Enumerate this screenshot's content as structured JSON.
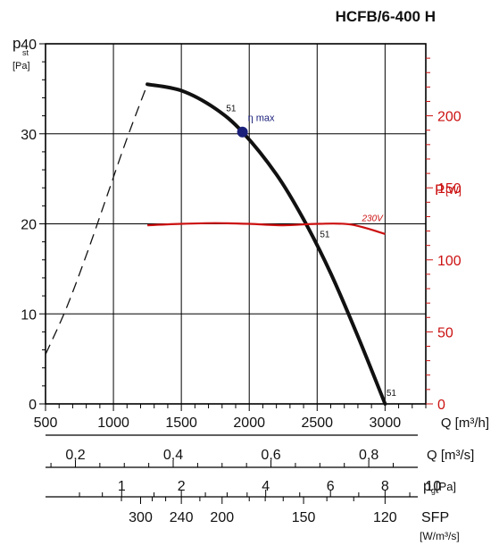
{
  "chart_data": {
    "type": "line",
    "title": "HCFB/6-400 H",
    "colors": {
      "pressure": "#111111",
      "power": "#cc1111",
      "eta_point": "#1a1f7a",
      "grid": "#000000"
    },
    "y_pressure": {
      "symbol": "p",
      "subscript": "st",
      "unit": "[Pa]",
      "range": [
        0,
        40
      ],
      "ticks": [
        0,
        10,
        20,
        30,
        40
      ],
      "tick_labels": [
        "0",
        "10",
        "20",
        "30",
        "40"
      ]
    },
    "y_power": {
      "symbol": "P",
      "unit": "[W]",
      "range": [
        0,
        250
      ],
      "ticks": [
        0,
        50,
        100,
        150,
        200
      ],
      "tick_labels": [
        "0",
        "50",
        "100",
        "150",
        "200"
      ]
    },
    "x_flow_m3h": {
      "label": "Q [m³/h]",
      "range": [
        500,
        3300
      ],
      "ticks": [
        500,
        1000,
        1500,
        2000,
        2500,
        3000
      ],
      "tick_labels": [
        "500",
        "1000",
        "1500",
        "2000",
        "2500",
        "3000"
      ]
    },
    "x_flow_m3s": {
      "label": "Q [m³/s]",
      "ticks": [
        0.2,
        0.4,
        0.6,
        0.8
      ],
      "tick_labels": [
        "0,2",
        "0,4",
        "0,6",
        "0,8"
      ]
    },
    "x_dynamic_pressure": {
      "label_main": "p",
      "label_sub": "g",
      "label_unit": "[Pa]",
      "ticks": [
        1,
        2,
        4,
        6,
        8,
        10
      ],
      "tick_labels": [
        "1",
        "2",
        "4",
        "6",
        "8",
        "10"
      ]
    },
    "x_sfp": {
      "label": "SFP",
      "unit": "[W/m³/s]",
      "ticks": [
        300,
        240,
        200,
        150,
        120
      ],
      "tick_labels": [
        "300",
        "240",
        "200",
        "150",
        "120"
      ]
    },
    "series": [
      {
        "name": "pressure",
        "axis": "y_pressure",
        "dashed_x": [
          500,
          650,
          800,
          950,
          1100,
          1250
        ],
        "dashed_y": [
          5.5,
          10.5,
          16.5,
          23,
          29.5,
          35.5
        ],
        "solid_x": [
          1250,
          1500,
          1750,
          1950,
          2200,
          2400,
          2600,
          2800,
          3000
        ],
        "solid_y": [
          35.5,
          34.8,
          32.8,
          30.2,
          25.5,
          20.5,
          14.5,
          7.5,
          0
        ]
      },
      {
        "name": "230V",
        "axis": "y_power",
        "x": [
          1250,
          1500,
          1750,
          2000,
          2250,
          2500,
          2750,
          3000
        ],
        "y": [
          124,
          125,
          125.5,
          125,
          124,
          125,
          124.5,
          118
        ]
      }
    ],
    "eta_point": {
      "x": 1950,
      "y": 30.2,
      "label": "η max"
    },
    "annotations": [
      {
        "text": "51",
        "x": 1830,
        "y": 32.5
      },
      {
        "text": "51",
        "x": 2520,
        "y": 18.5
      },
      {
        "text": "51",
        "x": 3010,
        "y": 0.9
      }
    ]
  }
}
